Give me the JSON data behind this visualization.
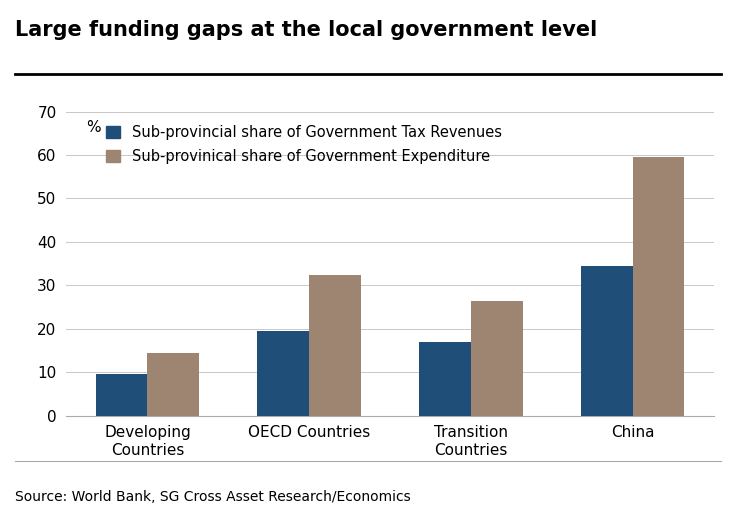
{
  "title": "Large funding gaps at the local government level",
  "categories": [
    "Developing\nCountries",
    "OECD Countries",
    "Transition\nCountries",
    "China"
  ],
  "tax_revenues": [
    9.5,
    19.5,
    17.0,
    34.5
  ],
  "expenditure": [
    14.5,
    32.5,
    26.5,
    59.5
  ],
  "bar_color_tax": "#1f4e79",
  "bar_color_exp": "#9e8572",
  "legend_tax": "Sub-provincial share of Government Tax Revenues",
  "legend_exp": "Sub-provinical share of Government Expenditure",
  "ylabel_annotation": "%",
  "ylim": [
    0,
    70
  ],
  "yticks": [
    0,
    10,
    20,
    30,
    40,
    50,
    60,
    70
  ],
  "source": "Source: World Bank, SG Cross Asset Research/Economics",
  "background_color": "#ffffff",
  "title_fontsize": 15,
  "axis_fontsize": 11,
  "legend_fontsize": 10.5,
  "source_fontsize": 10
}
